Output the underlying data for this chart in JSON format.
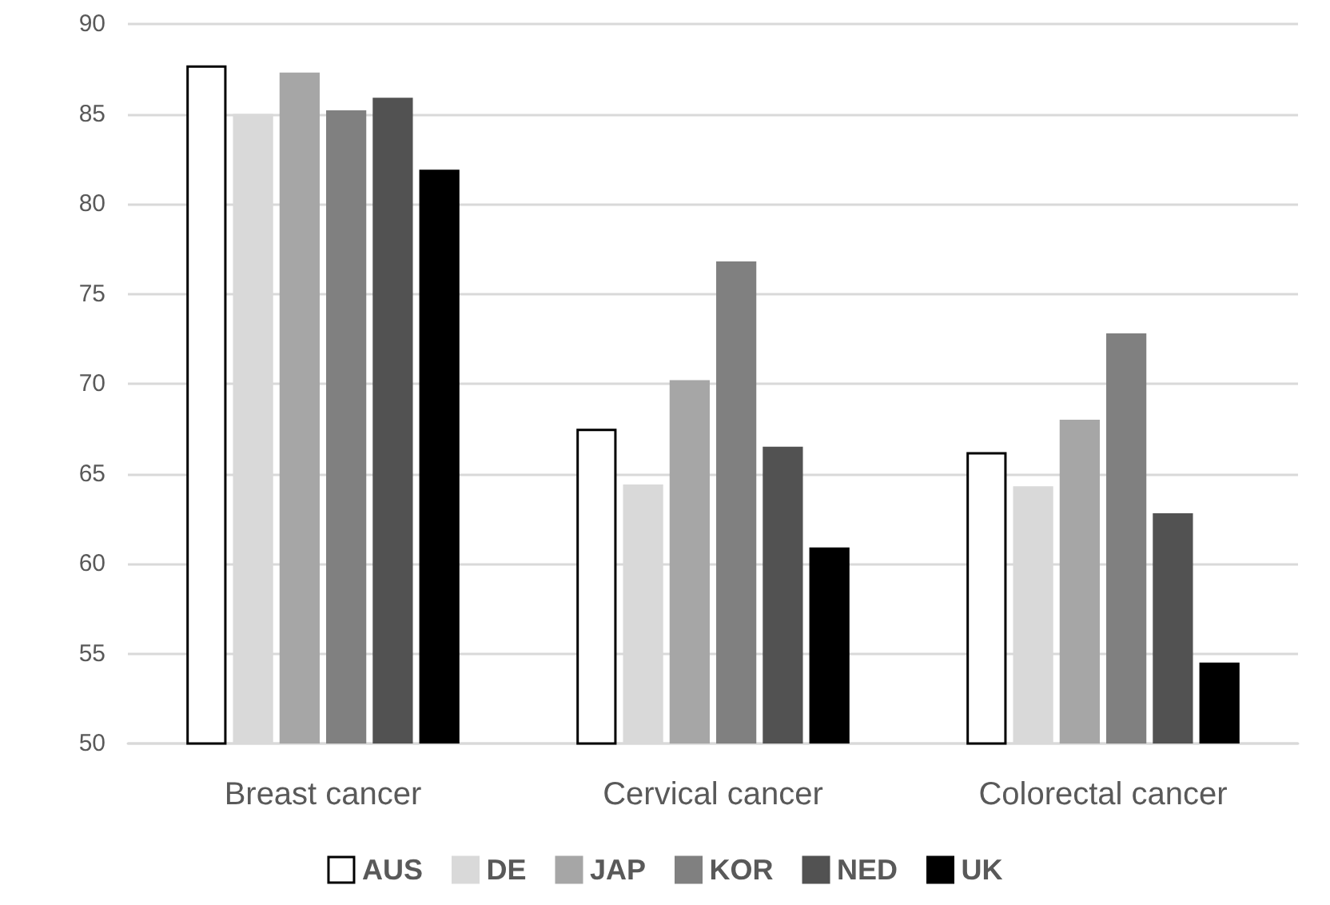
{
  "chart_data": {
    "type": "bar",
    "categories": [
      "Breast cancer",
      "Cervical cancer",
      "Colorectal cancer"
    ],
    "series": [
      {
        "name": "AUS",
        "color": "#ffffff",
        "values": [
          87.7,
          67.5,
          66.2
        ]
      },
      {
        "name": "DE",
        "color": "#d9d9d9",
        "values": [
          85.0,
          64.4,
          64.3
        ]
      },
      {
        "name": "JAP",
        "color": "#a6a6a6",
        "values": [
          87.3,
          70.2,
          68.0
        ]
      },
      {
        "name": "KOR",
        "color": "#808080",
        "values": [
          85.2,
          76.8,
          72.8
        ]
      },
      {
        "name": "NED",
        "color": "#525252",
        "values": [
          85.9,
          66.5,
          62.8
        ]
      },
      {
        "name": "UK",
        "color": "#000000",
        "values": [
          81.9,
          60.9,
          54.5
        ]
      }
    ],
    "ylim": [
      50,
      90
    ],
    "yticks": [
      50,
      55,
      60,
      65,
      70,
      75,
      80,
      85,
      90
    ],
    "grid": "y",
    "legend": "bottom"
  }
}
